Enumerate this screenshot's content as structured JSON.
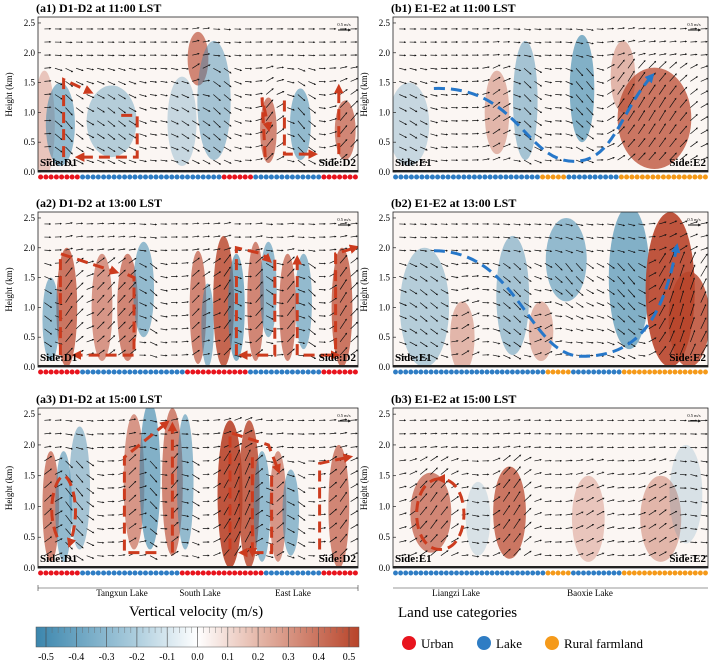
{
  "chart_data": [
    {
      "type": "heatmap",
      "panel": "a1",
      "title": "(a1) D1-D2 at 11:00 LST",
      "ylabel": "Height (km)",
      "yticks": [
        "0.0",
        "0.5",
        "1.0",
        "1.5",
        "2.0",
        "2.5"
      ],
      "ylim": [
        0,
        2.6
      ],
      "side_left": "Side:D1",
      "side_right": "Side:D2",
      "ref_vector": "0.5 m/s",
      "landuse": [
        "urban",
        "urban",
        "urban",
        "urban",
        "urban",
        "urban",
        "urban",
        "urban",
        "lake",
        "lake",
        "lake",
        "lake",
        "lake",
        "lake",
        "lake",
        "lake",
        "lake",
        "lake",
        "lake",
        "lake",
        "lake",
        "lake",
        "lake",
        "lake",
        "lake",
        "lake",
        "lake",
        "lake",
        "lake",
        "lake",
        "lake",
        "lake",
        "lake",
        "lake",
        "lake",
        "urban",
        "urban",
        "urban",
        "urban",
        "urban",
        "urban",
        "lake",
        "lake",
        "lake",
        "lake",
        "lake",
        "lake",
        "lake",
        "lake",
        "lake",
        "lake",
        "lake",
        "lake",
        "lake",
        "urban",
        "urban",
        "urban",
        "urban",
        "urban",
        "urban",
        "urban"
      ],
      "blobs": [
        [
          0.02,
          0.8,
          0.025,
          0.9,
          0.15
        ],
        [
          0.07,
          0.8,
          0.035,
          0.7,
          -0.3
        ],
        [
          0.23,
          0.85,
          0.06,
          0.6,
          -0.2
        ],
        [
          0.45,
          0.85,
          0.035,
          0.75,
          -0.15
        ],
        [
          0.5,
          1.9,
          0.025,
          0.45,
          0.35
        ],
        [
          0.55,
          1.2,
          0.04,
          1.0,
          -0.25
        ],
        [
          0.72,
          0.7,
          0.02,
          0.55,
          0.35
        ],
        [
          0.82,
          0.8,
          0.025,
          0.6,
          -0.3
        ],
        [
          0.96,
          0.7,
          0.025,
          0.5,
          0.35
        ]
      ],
      "circulation": [
        "M0.08,0.25 L0.08,1.55 L0.16,1.35",
        "M0.26,0.95 L0.31,0.95 L0.31,0.25 L0.13,0.25",
        "M0.71,0.25 L0.70,1.25 L0.72,0.75",
        "M0.77,1.2 L0.77,0.3 L0.86,0.3",
        "M0.94,0.3 L0.94,1.4"
      ]
    },
    {
      "type": "heatmap",
      "panel": "b1",
      "title": "(b1) E1-E2 at 11:00 LST",
      "ylabel": "Height (km)",
      "yticks": [
        "0.0",
        "0.5",
        "1.0",
        "1.5",
        "2.0",
        "2.5"
      ],
      "ylim": [
        0,
        2.6
      ],
      "side_left": "Side:E1",
      "side_right": "Side:E2",
      "ref_vector": "0.5 m/s",
      "landuse": [
        "lake",
        "lake",
        "lake",
        "lake",
        "lake",
        "lake",
        "lake",
        "lake",
        "lake",
        "lake",
        "lake",
        "lake",
        "lake",
        "lake",
        "lake",
        "lake",
        "lake",
        "lake",
        "lake",
        "lake",
        "lake",
        "lake",
        "lake",
        "lake",
        "lake",
        "lake",
        "lake",
        "lake",
        "rural",
        "rural",
        "rural",
        "rural",
        "rural",
        "lake",
        "lake",
        "lake",
        "lake",
        "lake",
        "lake",
        "lake",
        "lake",
        "lake",
        "lake",
        "rural",
        "rural",
        "rural",
        "rural",
        "rural",
        "rural",
        "rural",
        "rural",
        "rural",
        "rural",
        "rural",
        "rural",
        "rural",
        "rural",
        "rural",
        "rural",
        "rural"
      ],
      "blobs": [
        [
          0.05,
          0.8,
          0.05,
          0.7,
          -0.15
        ],
        [
          0.33,
          1.0,
          0.03,
          0.7,
          0.2
        ],
        [
          0.42,
          1.2,
          0.03,
          1.0,
          -0.25
        ],
        [
          0.6,
          1.4,
          0.03,
          0.9,
          -0.35
        ],
        [
          0.83,
          0.9,
          0.09,
          0.85,
          0.4
        ],
        [
          0.73,
          1.6,
          0.03,
          0.6,
          0.2
        ]
      ],
      "circulation": [
        "M0.13,1.4 C0.4,1.45 0.42,0.15 0.58,0.18 C0.7,0.2 0.72,1.0 0.82,1.6"
      ],
      "circulation_color": "blue"
    },
    {
      "type": "heatmap",
      "panel": "a2",
      "title": "(a2) D1-D2 at 13:00 LST",
      "ylabel": "Height (km)",
      "yticks": [
        "0.0",
        "0.5",
        "1.0",
        "1.5",
        "2.0",
        "2.5"
      ],
      "ylim": [
        0,
        2.6
      ],
      "side_left": "Side:D1",
      "side_right": "Side:D2",
      "ref_vector": "0.5 m/s",
      "landuse": [
        "urban",
        "urban",
        "urban",
        "urban",
        "urban",
        "urban",
        "urban",
        "urban",
        "lake",
        "lake",
        "lake",
        "lake",
        "lake",
        "lake",
        "lake",
        "lake",
        "lake",
        "lake",
        "lake",
        "lake",
        "lake",
        "lake",
        "lake",
        "lake",
        "lake",
        "lake",
        "lake",
        "lake",
        "urban",
        "urban",
        "urban",
        "urban",
        "urban",
        "urban",
        "urban",
        "urban",
        "urban",
        "urban",
        "urban",
        "urban",
        "lake",
        "lake",
        "lake",
        "lake",
        "lake",
        "lake",
        "lake",
        "lake",
        "lake",
        "lake",
        "lake",
        "lake",
        "lake",
        "lake",
        "urban",
        "urban",
        "urban",
        "urban",
        "urban",
        "urban",
        "urban"
      ],
      "blobs": [
        [
          0.09,
          1.0,
          0.025,
          1.0,
          0.4
        ],
        [
          0.04,
          0.8,
          0.02,
          0.7,
          -0.3
        ],
        [
          0.2,
          1.0,
          0.025,
          0.9,
          0.3
        ],
        [
          0.28,
          1.0,
          0.025,
          0.9,
          0.35
        ],
        [
          0.33,
          1.3,
          0.025,
          0.8,
          -0.3
        ],
        [
          0.5,
          1.0,
          0.02,
          0.95,
          0.35
        ],
        [
          0.53,
          0.7,
          0.015,
          0.7,
          -0.3
        ],
        [
          0.58,
          1.1,
          0.025,
          1.1,
          0.45
        ],
        [
          0.62,
          1.0,
          0.02,
          0.9,
          -0.35
        ],
        [
          0.68,
          1.1,
          0.02,
          1.0,
          0.35
        ],
        [
          0.72,
          1.3,
          0.02,
          0.8,
          -0.3
        ],
        [
          0.78,
          1.0,
          0.02,
          0.9,
          0.35
        ],
        [
          0.83,
          1.1,
          0.02,
          0.8,
          -0.3
        ],
        [
          0.95,
          1.0,
          0.025,
          1.0,
          0.4
        ]
      ],
      "circulation": [
        "M0.07,0.2 L0.07,1.9 L0.24,1.6",
        "M0.28,1.55 L0.3,1.5 L0.3,0.2 L0.12,0.2",
        "M0.62,0.2 L0.62,2.0 L0.7,1.9 L0.72,1.8",
        "M0.74,1.8 L0.74,0.2 L0.64,0.2",
        "M0.81,0.2 L0.81,1.8",
        "M0.83,0.2 L0.93,0.2",
        "M0.93,0.3 L0.93,1.9 L0.99,2.0"
      ]
    },
    {
      "type": "heatmap",
      "panel": "b2",
      "title": "(b2) E1-E2 at 13:00 LST",
      "ylabel": "Height (km)",
      "yticks": [
        "0.0",
        "0.5",
        "1.0",
        "1.5",
        "2.0",
        "2.5"
      ],
      "ylim": [
        0,
        2.6
      ],
      "side_left": "Side:E1",
      "side_right": "Side:E2",
      "ref_vector": "0.5 m/s",
      "landuse": [
        "lake",
        "lake",
        "lake",
        "lake",
        "lake",
        "lake",
        "lake",
        "lake",
        "lake",
        "lake",
        "lake",
        "lake",
        "lake",
        "lake",
        "lake",
        "lake",
        "lake",
        "lake",
        "lake",
        "lake",
        "lake",
        "lake",
        "lake",
        "lake",
        "lake",
        "lake",
        "lake",
        "lake",
        "lake",
        "lake",
        "rural",
        "rural",
        "rural",
        "rural",
        "rural",
        "lake",
        "lake",
        "lake",
        "lake",
        "lake",
        "lake",
        "lake",
        "lake",
        "lake",
        "lake",
        "rural",
        "rural",
        "rural",
        "rural",
        "rural",
        "rural",
        "rural",
        "rural",
        "rural",
        "rural",
        "rural",
        "rural",
        "rural",
        "rural",
        "rural",
        "rural",
        "rural"
      ],
      "blobs": [
        [
          0.1,
          1.0,
          0.06,
          1.0,
          -0.2
        ],
        [
          0.22,
          0.5,
          0.03,
          0.6,
          0.2
        ],
        [
          0.38,
          1.2,
          0.04,
          1.0,
          -0.25
        ],
        [
          0.47,
          0.6,
          0.03,
          0.5,
          0.2
        ],
        [
          0.55,
          1.8,
          0.05,
          0.7,
          -0.3
        ],
        [
          0.75,
          1.5,
          0.05,
          1.2,
          -0.35
        ],
        [
          0.88,
          1.3,
          0.06,
          1.3,
          0.5
        ],
        [
          0.94,
          0.8,
          0.05,
          0.8,
          0.45
        ]
      ],
      "circulation": [
        "M0.13,1.95 C0.4,1.95 0.43,0.18 0.6,0.18 C0.75,0.18 0.85,0.6 0.9,2.0"
      ],
      "circulation_color": "blue"
    },
    {
      "type": "heatmap",
      "panel": "a3",
      "title": "(a3) D1-D2 at 15:00 LST",
      "ylabel": "Height (km)",
      "yticks": [
        "0.0",
        "0.5",
        "1.0",
        "1.5",
        "2.0",
        "2.5"
      ],
      "ylim": [
        0,
        2.6
      ],
      "side_left": "Side:D1",
      "side_right": "Side:D2",
      "ref_vector": "0.5 m/s",
      "landuse": [
        "urban",
        "urban",
        "urban",
        "urban",
        "urban",
        "urban",
        "urban",
        "urban",
        "lake",
        "lake",
        "lake",
        "lake",
        "lake",
        "lake",
        "lake",
        "lake",
        "lake",
        "lake",
        "lake",
        "lake",
        "lake",
        "lake",
        "lake",
        "lake",
        "lake",
        "lake",
        "lake",
        "urban",
        "urban",
        "urban",
        "urban",
        "urban",
        "urban",
        "urban",
        "urban",
        "urban",
        "urban",
        "urban",
        "urban",
        "urban",
        "urban",
        "urban",
        "urban",
        "lake",
        "lake",
        "lake",
        "lake",
        "lake",
        "lake",
        "lake",
        "lake",
        "lake",
        "lake",
        "lake",
        "urban",
        "urban",
        "urban",
        "urban",
        "urban",
        "urban",
        "urban"
      ],
      "blobs": [
        [
          0.04,
          1.0,
          0.02,
          0.9,
          0.35
        ],
        [
          0.08,
          1.0,
          0.02,
          0.9,
          -0.3
        ],
        [
          0.13,
          1.3,
          0.025,
          1.0,
          -0.25
        ],
        [
          0.3,
          1.4,
          0.025,
          1.1,
          0.3
        ],
        [
          0.35,
          1.5,
          0.025,
          1.2,
          -0.35
        ],
        [
          0.42,
          1.4,
          0.025,
          1.2,
          0.35
        ],
        [
          0.46,
          1.4,
          0.02,
          1.1,
          -0.3
        ],
        [
          0.6,
          1.2,
          0.03,
          1.2,
          0.5
        ],
        [
          0.66,
          1.2,
          0.025,
          1.2,
          0.45
        ],
        [
          0.7,
          1.0,
          0.02,
          0.9,
          -0.3
        ],
        [
          0.75,
          1.0,
          0.02,
          0.9,
          0.3
        ],
        [
          0.79,
          0.9,
          0.02,
          0.7,
          -0.3
        ],
        [
          0.94,
          1.0,
          0.025,
          1.0,
          0.35
        ]
      ],
      "circulation": [
        "M0.06,0.5 C0.02,1.0 0.06,1.5 0.08,1.5 C0.1,1.5 0.14,1.0 0.1,0.4",
        "M0.37,0.25 L0.27,0.25 L0.27,1.8 L0.4,2.35",
        "M0.42,0.25 L0.42,2.3",
        "M0.6,0.3 L0.6,2.2 L0.72,2.0 L0.75,1.6",
        "M0.67,1.8 L0.67,0.25",
        "M0.73,1.5 L0.73,0.25 L0.64,0.25",
        "M0.88,0.3 L0.88,1.7 L0.97,1.8"
      ]
    },
    {
      "type": "heatmap",
      "panel": "b3",
      "title": "(b3) E1-E2 at 15:00 LST",
      "ylabel": "Height (km)",
      "yticks": [
        "0.0",
        "0.5",
        "1.0",
        "1.5",
        "2.0",
        "2.5"
      ],
      "ylim": [
        0,
        2.6
      ],
      "side_left": "Side:E1",
      "side_right": "Side:E2",
      "ref_vector": "0.5 m/s",
      "landuse": [
        "lake",
        "lake",
        "lake",
        "lake",
        "lake",
        "lake",
        "lake",
        "lake",
        "lake",
        "lake",
        "lake",
        "lake",
        "lake",
        "lake",
        "lake",
        "lake",
        "lake",
        "lake",
        "lake",
        "lake",
        "lake",
        "lake",
        "lake",
        "lake",
        "lake",
        "lake",
        "lake",
        "lake",
        "lake",
        "lake",
        "rural",
        "rural",
        "rural",
        "rural",
        "rural",
        "lake",
        "lake",
        "lake",
        "lake",
        "lake",
        "lake",
        "lake",
        "lake",
        "lake",
        "lake",
        "rural",
        "rural",
        "rural",
        "rural",
        "rural",
        "rural",
        "rural",
        "rural",
        "rural",
        "rural",
        "rural",
        "rural",
        "rural",
        "rural",
        "rural",
        "rural",
        "rural"
      ],
      "blobs": [
        [
          0.12,
          0.9,
          0.05,
          0.65,
          0.35
        ],
        [
          0.27,
          0.8,
          0.03,
          0.6,
          -0.1
        ],
        [
          0.37,
          0.9,
          0.04,
          0.75,
          0.4
        ],
        [
          0.62,
          0.8,
          0.04,
          0.7,
          0.15
        ],
        [
          0.85,
          0.8,
          0.05,
          0.7,
          0.2
        ],
        [
          0.93,
          1.2,
          0.04,
          0.8,
          -0.1
        ]
      ],
      "circulation": [
        "M0.15,1.45 C0.05,1.45 0.05,0.3 0.15,0.3 C0.25,0.3 0.25,1.45 0.15,1.45"
      ]
    }
  ],
  "bottom_left": {
    "lake_labels": [
      "Tangxun Lake",
      "South Lake",
      "East Lake"
    ]
  },
  "bottom_right": {
    "lake_labels": [
      "Liangzi Lake",
      "Baoxie Lake"
    ]
  },
  "colorbar": {
    "title": "Vertical velocity (m/s)",
    "ticks": [
      "-0.5",
      "-0.4",
      "-0.3",
      "-0.2",
      "-0.1",
      "0.0",
      "0.1",
      "0.2",
      "0.3",
      "0.4",
      "0.5"
    ],
    "range": [
      -0.5,
      0.5
    ],
    "neg_color": "#3b86ad",
    "pos_color": "#b8442a"
  },
  "landuse_legend": {
    "title": "Land use categories",
    "items": [
      {
        "label": "Urban",
        "color": "#e8141e"
      },
      {
        "label": "Lake",
        "color": "#2f7dc4"
      },
      {
        "label": "Rural farmland",
        "color": "#f59a1a"
      }
    ]
  }
}
